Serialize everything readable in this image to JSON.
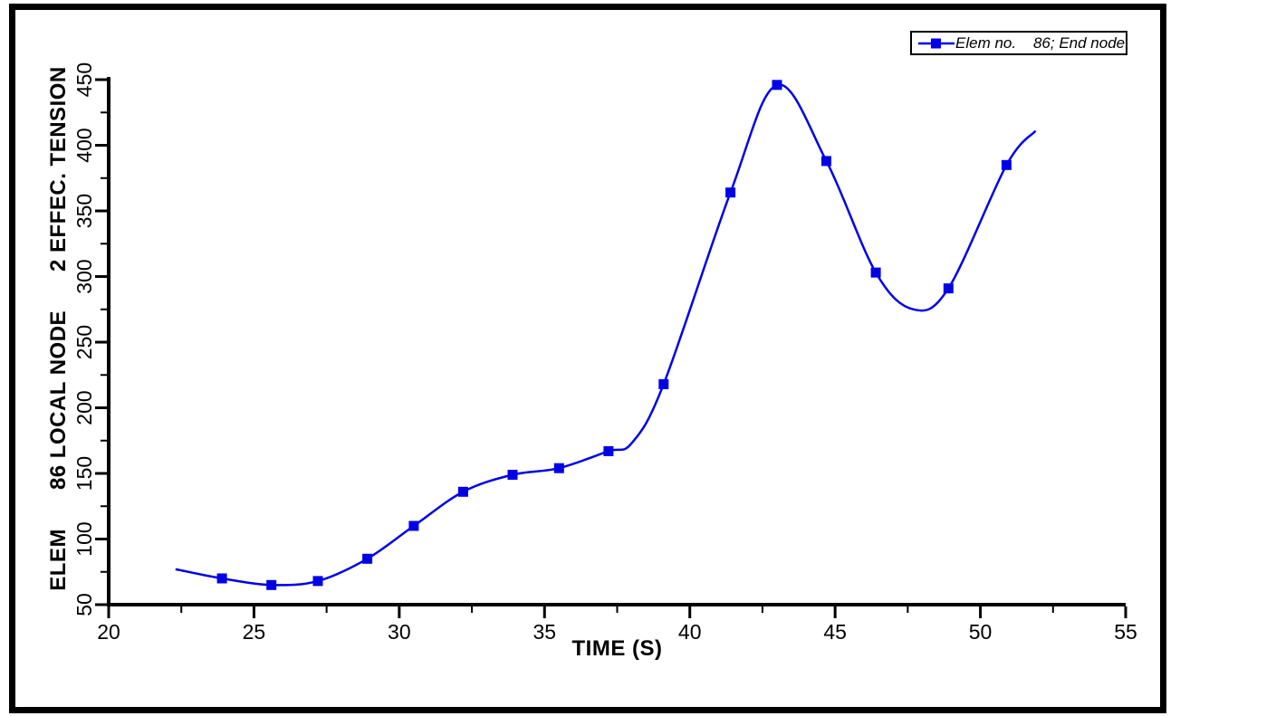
{
  "figure": {
    "background": "#ffffff",
    "frame_color": "#000000"
  },
  "chart_data": {
    "type": "line",
    "title": "",
    "xlabel": "TIME (S)",
    "ylabel": "ELEM      86 LOCAL NODE      2 EFFEC. TENSION",
    "xlim": [
      20,
      55
    ],
    "ylim": [
      50,
      450
    ],
    "x_major_ticks": [
      20,
      25,
      30,
      35,
      40,
      45,
      50,
      55
    ],
    "x_minor_ticks": [
      22.5,
      27.5,
      32.5,
      37.5,
      42.5,
      47.5,
      52.5
    ],
    "y_major_ticks": [
      50,
      100,
      150,
      200,
      250,
      300,
      350,
      400,
      450
    ],
    "y_minor_ticks": [
      75,
      125,
      175,
      225,
      275,
      325,
      375,
      425
    ],
    "grid": false,
    "axis_color": "#000000",
    "legend": {
      "position": "top-right",
      "label": "Elem no.    86; End node"
    },
    "series": [
      {
        "name": "Elem no. 86; End node",
        "color": "#0000e8",
        "marker": "square",
        "marker_size": 11,
        "points": [
          {
            "t": 22.3,
            "v": 77,
            "marker": false
          },
          {
            "t": 23.9,
            "v": 70,
            "marker": true
          },
          {
            "t": 25.6,
            "v": 65,
            "marker": true
          },
          {
            "t": 27.2,
            "v": 68,
            "marker": true
          },
          {
            "t": 28.9,
            "v": 85,
            "marker": true
          },
          {
            "t": 30.5,
            "v": 110,
            "marker": true
          },
          {
            "t": 32.2,
            "v": 136,
            "marker": true
          },
          {
            "t": 33.9,
            "v": 149,
            "marker": true
          },
          {
            "t": 35.5,
            "v": 154,
            "marker": true
          },
          {
            "t": 37.2,
            "v": 167,
            "marker": true
          },
          {
            "t": 38.0,
            "v": 173,
            "marker": false
          },
          {
            "t": 39.1,
            "v": 218,
            "marker": true
          },
          {
            "t": 41.4,
            "v": 364,
            "marker": true
          },
          {
            "t": 43.0,
            "v": 446,
            "marker": true
          },
          {
            "t": 44.7,
            "v": 388,
            "marker": true
          },
          {
            "t": 46.4,
            "v": 303,
            "marker": true
          },
          {
            "t": 47.7,
            "v": 275,
            "marker": false
          },
          {
            "t": 48.9,
            "v": 291,
            "marker": true
          },
          {
            "t": 50.9,
            "v": 385,
            "marker": true
          },
          {
            "t": 51.9,
            "v": 411,
            "marker": false
          }
        ]
      }
    ]
  }
}
